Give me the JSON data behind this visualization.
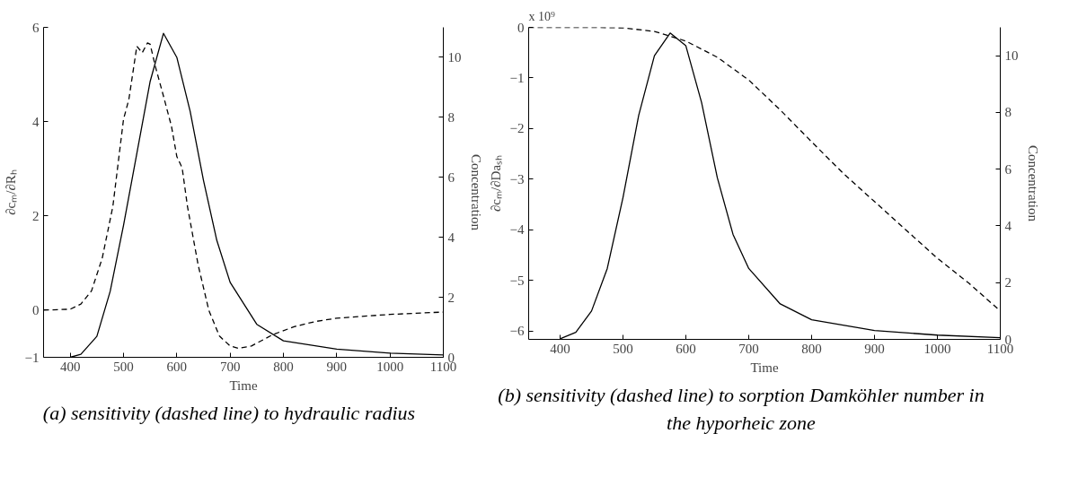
{
  "chart_data": [
    {
      "type": "line",
      "xlabel": "Time",
      "ylabel": "∂cₘ/∂Rₕ",
      "y2label": "Concentration",
      "xlim": [
        350,
        1100
      ],
      "xticks": [
        400,
        500,
        600,
        700,
        800,
        900,
        1000,
        1100
      ],
      "ylim": [
        -1,
        6
      ],
      "yticks": [
        {
          "value": -1,
          "label": "−1"
        },
        0,
        2,
        4,
        6
      ],
      "y2lim": [
        0,
        11
      ],
      "y2ticks": [
        0,
        2,
        4,
        6,
        8,
        10
      ],
      "annotations": [
        "(a) sensitivity (dashed line) to hydraulic radius"
      ],
      "series": [
        {
          "axis": "y2",
          "color": "#000000",
          "line_style": "solid",
          "x": [
            400,
            420,
            450,
            475,
            500,
            525,
            550,
            575,
            600,
            625,
            650,
            675,
            700,
            750,
            800,
            900,
            1000,
            1100
          ],
          "values": [
            0,
            0.1,
            0.7,
            2.2,
            4.4,
            6.8,
            9.2,
            10.8,
            10.0,
            8.2,
            5.9,
            3.9,
            2.5,
            1.1,
            0.55,
            0.27,
            0.14,
            0.08
          ]
        },
        {
          "color": "#000000",
          "line_style": "dashed",
          "x": [
            350,
            400,
            420,
            440,
            460,
            480,
            500,
            510,
            525,
            535,
            545,
            550,
            560,
            575,
            590,
            600,
            610,
            620,
            640,
            660,
            680,
            700,
            715,
            740,
            780,
            820,
            860,
            900,
            1000,
            1100
          ],
          "values": [
            0.0,
            0.02,
            0.13,
            0.41,
            1.1,
            2.2,
            4.05,
            4.47,
            5.6,
            5.46,
            5.67,
            5.64,
            5.16,
            4.54,
            3.9,
            3.26,
            3.02,
            2.2,
            0.96,
            0.0,
            -0.55,
            -0.76,
            -0.81,
            -0.76,
            -0.52,
            -0.35,
            -0.24,
            -0.17,
            -0.09,
            -0.04
          ]
        }
      ]
    },
    {
      "type": "line",
      "xlabel": "Time",
      "ylabel": "∂cₘ/∂Daₛₕ",
      "y2label": "Concentration",
      "xlim": [
        350,
        1100
      ],
      "xticks": [
        400,
        500,
        600,
        700,
        800,
        900,
        1000,
        1100
      ],
      "ylim": [
        -6.16,
        0
      ],
      "yticks": [
        {
          "value": -6,
          "label": "−6"
        },
        {
          "value": -5,
          "label": "−5"
        },
        {
          "value": -4,
          "label": "−4"
        },
        {
          "value": -3,
          "label": "−3"
        },
        {
          "value": -2,
          "label": "−2"
        },
        {
          "value": -1,
          "label": "−1"
        },
        0
      ],
      "y2lim": [
        0,
        11
      ],
      "y2ticks": [
        0,
        2,
        4,
        6,
        8,
        10
      ],
      "annotations": [
        "x 10⁹",
        "(b) sensitivity (dashed line) to sorption Damköhler number in the hyporheic zone"
      ],
      "series": [
        {
          "axis": "y2",
          "color": "#000000",
          "line_style": "solid",
          "x": [
            400,
            425,
            450,
            475,
            500,
            525,
            550,
            575,
            600,
            625,
            650,
            675,
            700,
            750,
            800,
            900,
            1000,
            1100
          ],
          "values": [
            0.02,
            0.25,
            1.0,
            2.5,
            5.0,
            7.9,
            10.0,
            10.8,
            10.35,
            8.35,
            5.7,
            3.7,
            2.5,
            1.25,
            0.69,
            0.31,
            0.15,
            0.06
          ]
        },
        {
          "color": "#000000",
          "line_style": "dashed",
          "x": [
            350,
            450,
            500,
            550,
            600,
            650,
            700,
            750,
            800,
            850,
            900,
            950,
            1000,
            1050,
            1100
          ],
          "values": [
            0,
            0,
            -0.01,
            -0.08,
            -0.27,
            -0.59,
            -1.04,
            -1.63,
            -2.26,
            -2.88,
            -3.44,
            -4.0,
            -4.56,
            -5.05,
            -5.6
          ]
        }
      ]
    }
  ]
}
